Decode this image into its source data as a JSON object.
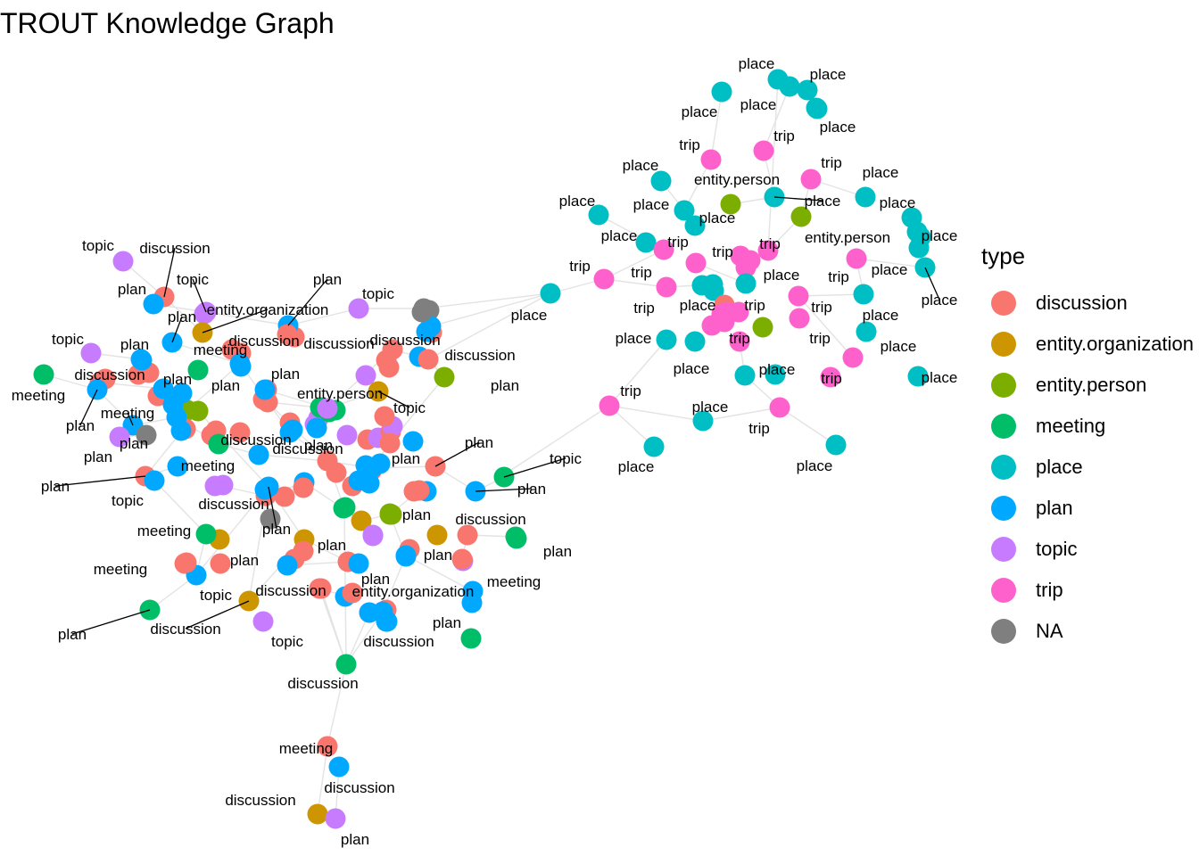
{
  "title": "TROUT Knowledge Graph",
  "legend": {
    "title": "type",
    "items": [
      {
        "label": "discussion",
        "color": "#F8766D"
      },
      {
        "label": "entity.organization",
        "color": "#CD9600"
      },
      {
        "label": "entity.person",
        "color": "#7CAE00"
      },
      {
        "label": "meeting",
        "color": "#00BE67"
      },
      {
        "label": "place",
        "color": "#00BFC4"
      },
      {
        "label": "plan",
        "color": "#00A9FF"
      },
      {
        "label": "topic",
        "color": "#C77CFF"
      },
      {
        "label": "trip",
        "color": "#FF61CC"
      },
      {
        "label": "NA",
        "color": "#7F7F7F"
      }
    ]
  },
  "node_type_order": [
    "discussion",
    "entity.organization",
    "entity.person",
    "meeting",
    "place",
    "plan",
    "topic",
    "trip",
    "NA"
  ],
  "labels": [
    "place",
    "place",
    "place",
    "place",
    "place",
    "trip",
    "trip",
    "place",
    "trip",
    "entity.person",
    "place",
    "place",
    "place",
    "place",
    "place",
    "place",
    "place",
    "trip",
    "trip",
    "entity.person",
    "trip",
    "place",
    "place",
    "trip",
    "place",
    "trip",
    "place",
    "place",
    "trip",
    "place",
    "trip",
    "place",
    "trip",
    "place",
    "trip",
    "trip",
    "place",
    "place",
    "place",
    "trip",
    "place",
    "trip",
    "place",
    "trip",
    "place",
    "place",
    "trip",
    "place",
    "place",
    "trip",
    "place",
    "topic",
    "discussion",
    "plan",
    "topic",
    "plan",
    "entity.organization",
    "plan",
    "topic",
    "plan",
    "topic",
    "plan",
    "meeting",
    "discussion",
    "discussion",
    "discussion",
    "plan",
    "discussion",
    "meeting",
    "discussion",
    "plan",
    "plan",
    "plan",
    "plan",
    "entity.person",
    "topic",
    "meeting",
    "plan",
    "plan",
    "discussion",
    "plan",
    "topic",
    "plan",
    "discussion",
    "meeting",
    "discussion",
    "plan",
    "plan",
    "topic",
    "plan",
    "plan",
    "discussion",
    "plan",
    "meeting",
    "plan",
    "plan",
    "topic",
    "meeting",
    "plan",
    "plan",
    "discussion",
    "meeting",
    "plan",
    "discussion",
    "entity.organization",
    "discussion",
    "topic",
    "plan",
    "plan",
    "discussion",
    "meeting",
    "discussion",
    "discussion",
    "plan",
    "entity.organization",
    "plan",
    "plan",
    "meeting",
    "entity.organization",
    "topic",
    "plan",
    "meeting",
    "discussion",
    "plan",
    "entity.organization",
    "topic"
  ]
}
